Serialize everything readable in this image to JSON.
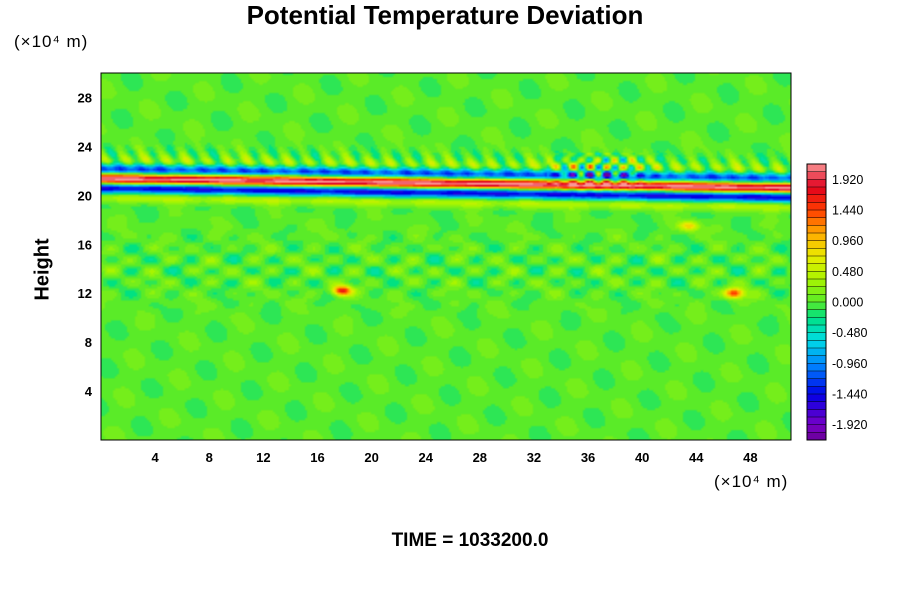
{
  "title": "Potential Temperature Deviation",
  "time_label": "TIME = 1033200.0",
  "chart_data": {
    "type": "heatmap",
    "title": "Potential Temperature Deviation",
    "xlabel": "",
    "ylabel": "Height",
    "x_unit": "(×10⁴ m)",
    "y_unit": "(×10⁴ m)",
    "xlim": [
      0,
      51
    ],
    "ylim": [
      0,
      30
    ],
    "x_ticks": [
      4,
      8,
      12,
      16,
      20,
      24,
      28,
      32,
      36,
      40,
      44,
      48
    ],
    "y_ticks": [
      4,
      8,
      12,
      16,
      20,
      24,
      28
    ],
    "x_tick_labels": [
      "4",
      "8",
      "12",
      "16",
      "20",
      "24",
      "28",
      "32",
      "36",
      "40",
      "44",
      "48"
    ],
    "y_tick_labels": [
      "4",
      "8",
      "12",
      "16",
      "20",
      "24",
      "28"
    ],
    "colorbar": {
      "min": -2.16,
      "max": 2.16,
      "step": 0.12,
      "ticks": [
        1.92,
        1.44,
        0.96,
        0.48,
        0.0,
        -0.48,
        -0.96,
        -1.44,
        -1.92
      ],
      "tick_labels": [
        "1.920",
        "1.440",
        "0.960",
        "0.480",
        "0.000",
        "-0.480",
        "-0.960",
        "-1.440",
        "-1.920"
      ]
    },
    "features": [
      {
        "kind": "band",
        "y_center": 20.9,
        "amplitude": 2.16,
        "description_level": "strong alternating layer"
      },
      {
        "kind": "wave_region",
        "x_range": [
          33,
          42
        ],
        "y_range": [
          19.5,
          23.5
        ]
      },
      {
        "kind": "spot",
        "x": 17.8,
        "y": 12.2,
        "value": 1.7
      },
      {
        "kind": "spot",
        "x": 46.8,
        "y": 12.0,
        "value": 1.6
      },
      {
        "kind": "spot",
        "x": 43.5,
        "y": 17.5,
        "value": 0.9
      }
    ]
  }
}
